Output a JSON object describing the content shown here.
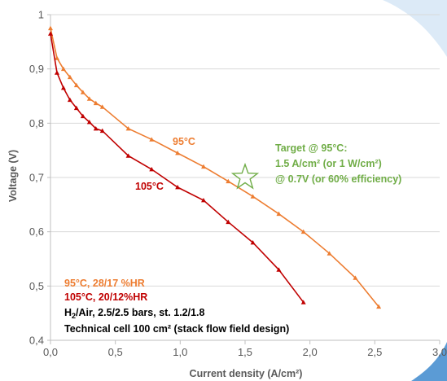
{
  "chart_data": {
    "type": "line",
    "xlabel": "Current density (A/cm²)",
    "ylabel": "Voltage (V)",
    "xlim": [
      0,
      3.0
    ],
    "ylim": [
      0.4,
      1.0
    ],
    "x_ticks": [
      "0,0",
      "0,5",
      "1,0",
      "1,5",
      "2,0",
      "2,5",
      "3,0"
    ],
    "y_ticks": [
      "0,4",
      "0,5",
      "0,6",
      "0,7",
      "0,8",
      "0,9",
      "1"
    ],
    "x_tick_values": [
      0,
      0.5,
      1.0,
      1.5,
      2.0,
      2.5,
      3.0
    ],
    "y_tick_values": [
      0.4,
      0.5,
      0.6,
      0.7,
      0.8,
      0.9,
      1.0
    ],
    "grid": "horizontal",
    "series": [
      {
        "name": "95°C",
        "color": "#ED7D31",
        "marker": "triangle",
        "x": [
          0.0,
          0.05,
          0.1,
          0.15,
          0.2,
          0.25,
          0.3,
          0.35,
          0.4,
          0.6,
          0.78,
          0.98,
          1.18,
          1.37,
          1.56,
          1.76,
          1.95,
          2.15,
          2.35,
          2.53
        ],
        "y": [
          0.975,
          0.92,
          0.9,
          0.885,
          0.87,
          0.857,
          0.845,
          0.837,
          0.83,
          0.79,
          0.77,
          0.745,
          0.72,
          0.693,
          0.665,
          0.633,
          0.6,
          0.56,
          0.515,
          0.462
        ]
      },
      {
        "name": "105°C",
        "color": "#C00000",
        "marker": "triangle",
        "x": [
          0.0,
          0.05,
          0.1,
          0.15,
          0.2,
          0.25,
          0.3,
          0.35,
          0.4,
          0.6,
          0.78,
          0.98,
          1.18,
          1.37,
          1.56,
          1.76,
          1.95
        ],
        "y": [
          0.965,
          0.893,
          0.865,
          0.843,
          0.828,
          0.813,
          0.802,
          0.79,
          0.786,
          0.74,
          0.715,
          0.682,
          0.658,
          0.618,
          0.58,
          0.53,
          0.47
        ]
      }
    ],
    "target": {
      "marker": "star",
      "color": "#70AD47",
      "x": 1.5,
      "y": 0.7
    },
    "annotations": {
      "label_95": "95°C",
      "label_105": "105°C",
      "target_line1": "Target @ 95°C:",
      "target_line2": "1.5 A/cm² (or 1 W/cm²)",
      "target_line3": "@ 0.7V (or 60% efficiency)",
      "note_95": "95°C, 28/17 %HR",
      "note_105": "105°C, 20/12%HR",
      "note_gas_h": "H",
      "note_gas_sub": "2",
      "note_gas_rest": "/Air, 2.5/2.5 bars, st. 1.2/1.8",
      "note_cell": "Technical cell 100 cm² (stack flow field design)"
    }
  }
}
